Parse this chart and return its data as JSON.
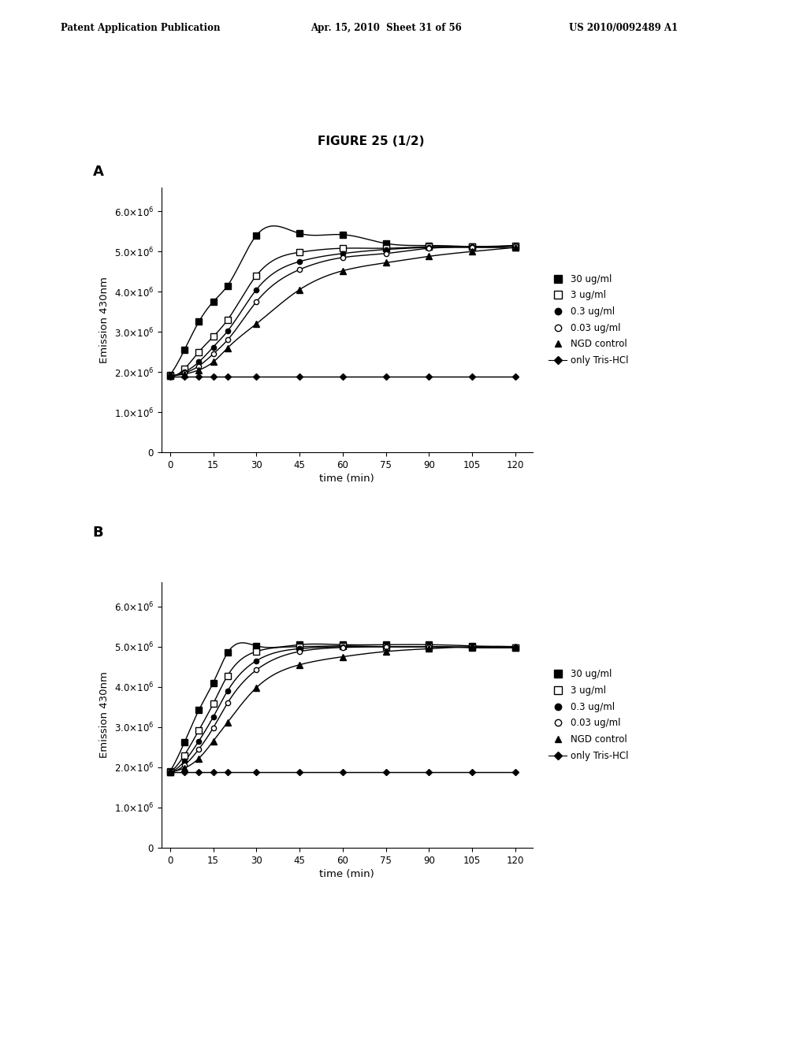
{
  "figure_title": "FIGURE 25 (1/2)",
  "panel_A_label": "A",
  "panel_B_label": "B",
  "header_left": "Patent Application Publication",
  "header_mid": "Apr. 15, 2010  Sheet 31 of 56",
  "header_right": "US 2010/0092489 A1",
  "xlabel": "time (min)",
  "ylabel": "Emission 430nm",
  "x_ticks": [
    0,
    15,
    30,
    45,
    60,
    75,
    90,
    105,
    120
  ],
  "ylim_min": 0,
  "ylim_max": 6600000,
  "y_ticks": [
    0,
    1000000,
    2000000,
    3000000,
    4000000,
    5000000,
    6000000
  ],
  "time_points": [
    0,
    5,
    10,
    15,
    20,
    30,
    45,
    60,
    75,
    90,
    105,
    120
  ],
  "panelA_30": [
    1930000.0,
    2550000.0,
    3250000.0,
    3750000.0,
    4150000.0,
    5400000.0,
    5450000.0,
    5420000.0,
    5200000.0,
    5150000.0,
    5120000.0,
    5100000.0
  ],
  "panelA_3": [
    1900000.0,
    2080000.0,
    2500000.0,
    2880000.0,
    3300000.0,
    4400000.0,
    4980000.0,
    5080000.0,
    5080000.0,
    5120000.0,
    5120000.0,
    5150000.0
  ],
  "panelA_03": [
    1900000.0,
    2000000.0,
    2250000.0,
    2620000.0,
    3020000.0,
    4050000.0,
    4750000.0,
    4950000.0,
    5050000.0,
    5100000.0,
    5120000.0,
    5150000.0
  ],
  "panelA_003": [
    1900000.0,
    1980000.0,
    2150000.0,
    2450000.0,
    2800000.0,
    3750000.0,
    4550000.0,
    4850000.0,
    4950000.0,
    5080000.0,
    5100000.0,
    5150000.0
  ],
  "panelA_ngd": [
    1900000.0,
    1950000.0,
    2050000.0,
    2250000.0,
    2600000.0,
    3200000.0,
    4050000.0,
    4520000.0,
    4720000.0,
    4880000.0,
    5000000.0,
    5100000.0
  ],
  "panelA_tris": [
    1880000.0,
    1880000.0,
    1880000.0,
    1880000.0,
    1880000.0,
    1880000.0,
    1880000.0,
    1880000.0,
    1880000.0,
    1880000.0,
    1880000.0,
    1880000.0
  ],
  "panelB_30": [
    1900000.0,
    2620000.0,
    3420000.0,
    4100000.0,
    4850000.0,
    5020000.0,
    5050000.0,
    5050000.0,
    5050000.0,
    5050000.0,
    5020000.0,
    4980000.0
  ],
  "panelB_3": [
    1880000.0,
    2300000.0,
    2920000.0,
    3580000.0,
    4280000.0,
    4880000.0,
    5000000.0,
    5020000.0,
    5000000.0,
    5000000.0,
    4980000.0,
    4980000.0
  ],
  "panelB_03": [
    1880000.0,
    2150000.0,
    2650000.0,
    3250000.0,
    3900000.0,
    4650000.0,
    4950000.0,
    5000000.0,
    5000000.0,
    5000000.0,
    4980000.0,
    4980000.0
  ],
  "panelB_003": [
    1880000.0,
    2050000.0,
    2450000.0,
    2980000.0,
    3600000.0,
    4420000.0,
    4880000.0,
    4980000.0,
    5000000.0,
    5000000.0,
    4980000.0,
    4980000.0
  ],
  "panelB_ngd": [
    1880000.0,
    1980000.0,
    2220000.0,
    2650000.0,
    3120000.0,
    3980000.0,
    4550000.0,
    4750000.0,
    4880000.0,
    4950000.0,
    5000000.0,
    5000000.0
  ],
  "panelB_tris": [
    1880000.0,
    1880000.0,
    1880000.0,
    1880000.0,
    1880000.0,
    1880000.0,
    1880000.0,
    1880000.0,
    1880000.0,
    1880000.0,
    1880000.0,
    1880000.0
  ],
  "legend_labels": [
    "30 ug/ml",
    "3 ug/ml",
    "0.3 ug/ml",
    "0.03 ug/ml",
    "NGD control",
    "only Tris-HCl"
  ],
  "background_color": "#ffffff"
}
